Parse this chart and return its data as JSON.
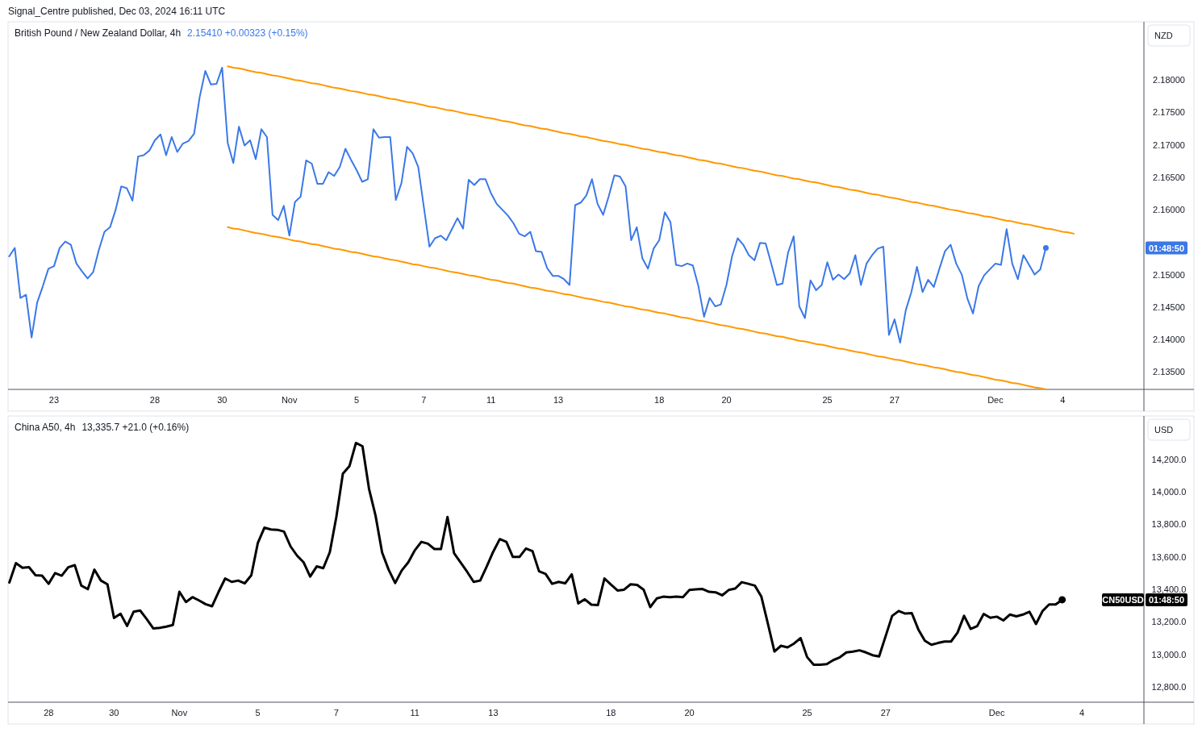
{
  "chart_data": [
    {
      "type": "line",
      "title": "British Pound / New Zealand Dollar, 4h",
      "subtitle": "2.15410  +0.00323 (+0.15%)",
      "ylabel": "NZD",
      "categories": [
        null,
        null,
        null,
        null,
        null,
        null,
        null,
        null,
        "23",
        null,
        null,
        null,
        null,
        null,
        null,
        null,
        null,
        null,
        null,
        null,
        null,
        null,
        null,
        null,
        null,
        null,
        "28",
        null,
        null,
        null,
        null,
        null,
        null,
        null,
        null,
        null,
        null,
        null,
        "30",
        null,
        null,
        null,
        null,
        null,
        null,
        null,
        null,
        null,
        null,
        null,
        "Nov",
        null,
        null,
        null,
        null,
        null,
        null,
        null,
        null,
        null,
        null,
        null,
        "5",
        null,
        null,
        null,
        null,
        null,
        null,
        null,
        null,
        null,
        null,
        null,
        "7",
        null,
        null,
        null,
        null,
        null,
        null,
        null,
        null,
        null,
        null,
        null,
        "11",
        null,
        null,
        null,
        null,
        null,
        null,
        null,
        null,
        null,
        null,
        null,
        "13",
        null,
        null,
        null,
        null,
        null,
        null,
        null,
        null,
        null,
        null,
        null,
        null,
        null,
        null,
        null,
        null,
        null,
        "18",
        null,
        null,
        null,
        null,
        null,
        null,
        null,
        null,
        null,
        null,
        null,
        "20",
        null,
        null,
        null,
        null,
        null,
        null,
        null,
        null,
        null,
        null,
        null,
        null,
        null,
        null,
        null,
        null,
        null,
        "25",
        null,
        null,
        null,
        null,
        null,
        null,
        null,
        null,
        null,
        null,
        null,
        "27",
        null,
        null,
        null,
        null,
        null,
        null,
        null,
        null,
        null,
        null,
        null,
        null,
        null,
        null,
        null,
        null,
        null,
        "Dec",
        null,
        null,
        null,
        null,
        null,
        null,
        null,
        null,
        null,
        null,
        null,
        "4",
        null,
        null,
        null,
        null,
        null,
        null,
        null,
        null,
        null,
        null,
        null,
        null,
        null,
        null
      ],
      "ylim": [
        2.1323,
        2.1886
      ],
      "yticks": [
        {
          "value": 2.135,
          "label": "2.13500"
        },
        {
          "value": 2.14,
          "label": "2.14000"
        },
        {
          "value": 2.145,
          "label": "2.14500"
        },
        {
          "value": 2.15,
          "label": "2.15000"
        },
        {
          "value": 2.16,
          "label": "2.16000"
        },
        {
          "value": 2.165,
          "label": "2.16500"
        },
        {
          "value": 2.17,
          "label": "2.17000"
        },
        {
          "value": 2.175,
          "label": "2.17500"
        },
        {
          "value": 2.18,
          "label": "2.18000"
        }
      ],
      "series": [
        {
          "color": "#3b78e7",
          "values": [
            2.1528,
            2.1541,
            2.1464,
            2.1469,
            2.1403,
            2.1457,
            2.1482,
            2.1509,
            2.1513,
            2.1541,
            2.1551,
            2.1546,
            2.1517,
            2.1505,
            2.1494,
            2.1504,
            2.1538,
            2.1566,
            2.1573,
            2.16,
            2.1636,
            2.1633,
            2.1614,
            2.1682,
            2.1684,
            2.1691,
            2.1707,
            2.1716,
            2.1684,
            2.1712,
            2.1689,
            2.1702,
            2.1706,
            2.1717,
            2.1774,
            2.1814,
            2.1793,
            2.1794,
            2.1819,
            2.1703,
            2.1672,
            2.1728,
            2.1699,
            2.1707,
            2.1678,
            2.1724,
            2.1712,
            2.1592,
            2.1584,
            2.1606,
            2.156,
            2.1612,
            2.162,
            2.1676,
            2.1671,
            2.164,
            2.164,
            2.1658,
            2.1652,
            2.1666,
            2.1694,
            2.1677,
            2.1661,
            2.1643,
            2.1647,
            2.1724,
            2.1711,
            2.1712,
            2.1712,
            2.1615,
            2.1641,
            2.1697,
            2.1687,
            2.1666,
            2.1604,
            2.1543,
            2.1556,
            2.156,
            2.1553,
            2.157,
            2.1587,
            2.1571,
            2.1646,
            2.1638,
            2.1647,
            2.1647,
            2.1625,
            2.1609,
            2.16,
            2.1591,
            2.1579,
            2.1563,
            2.1559,
            2.1566,
            2.1536,
            2.1535,
            2.151,
            2.1498,
            2.1498,
            2.1493,
            2.1484,
            2.1607,
            2.1611,
            2.1622,
            2.1647,
            2.1609,
            2.1592,
            2.1621,
            2.1653,
            2.1651,
            2.1636,
            2.1553,
            2.1573,
            2.1525,
            2.1509,
            2.154,
            2.1553,
            2.1596,
            2.1581,
            2.1515,
            2.1513,
            2.1517,
            2.1514,
            2.1482,
            2.1435,
            2.1464,
            2.1451,
            2.1454,
            2.1484,
            2.1528,
            2.1556,
            2.1546,
            2.153,
            2.1522,
            2.1549,
            2.1548,
            2.1517,
            2.1484,
            2.1486,
            2.1534,
            2.1559,
            2.1451,
            2.1433,
            2.1491,
            2.1476,
            2.1484,
            2.1519,
            2.1492,
            2.15,
            2.1493,
            2.1502,
            2.153,
            2.1484,
            2.1517,
            2.153,
            2.154,
            2.1543,
            2.1407,
            2.1431,
            2.1395,
            2.1445,
            2.1473,
            2.1512,
            2.1473,
            2.1492,
            2.1481,
            2.1509,
            2.1536,
            2.1546,
            2.1517,
            2.15,
            2.1463,
            2.144,
            2.1482,
            2.1499,
            2.1508,
            2.1517,
            2.1515,
            2.157,
            2.1517,
            2.1493,
            2.153,
            2.1515,
            2.15,
            2.1508,
            2.1541,
            null,
            null,
            null,
            null,
            null,
            null,
            null,
            null,
            null,
            null,
            null,
            null,
            null,
            null,
            null,
            null,
            null
          ]
        },
        {
          "color": "#ff9800",
          "values": [
            null,
            null,
            null,
            null,
            null,
            null,
            null,
            null,
            null,
            null,
            null,
            null,
            null,
            null,
            null,
            null,
            null,
            null,
            null,
            null,
            null,
            null,
            null,
            null,
            null,
            null,
            null,
            null,
            null,
            null,
            null,
            null,
            null,
            null,
            null,
            null,
            null,
            null,
            null,
            2.1821,
            2.1819,
            2.1818,
            2.1816,
            2.1814,
            2.1812,
            2.1811,
            2.1809,
            2.1807,
            2.1806,
            2.1804,
            2.1802,
            2.18,
            2.1799,
            2.1797,
            2.1795,
            2.1794,
            2.1792,
            2.179,
            2.1788,
            2.1787,
            2.1785,
            2.1783,
            2.1782,
            2.178,
            2.1778,
            2.1777,
            2.1775,
            2.1773,
            2.1771,
            2.177,
            2.1768,
            2.1766,
            2.1765,
            2.1763,
            2.1761,
            2.1759,
            2.1758,
            2.1756,
            2.1754,
            2.1753,
            2.1751,
            2.1749,
            2.1747,
            2.1746,
            2.1744,
            2.1742,
            2.1741,
            2.1739,
            2.1737,
            2.1736,
            2.1734,
            2.1732,
            2.173,
            2.1729,
            2.1727,
            2.1725,
            2.1724,
            2.1722,
            2.172,
            2.1718,
            2.1717,
            2.1715,
            2.1713,
            2.1712,
            2.171,
            2.1708,
            2.1706,
            2.1705,
            2.1703,
            2.1701,
            2.17,
            2.1698,
            2.1696,
            2.1694,
            2.1693,
            2.1691,
            2.1689,
            2.1688,
            2.1686,
            2.1684,
            2.1683,
            2.1681,
            2.1679,
            2.1677,
            2.1676,
            2.1674,
            2.1672,
            2.1671,
            2.1669,
            2.1667,
            2.1665,
            2.1664,
            2.1662,
            2.166,
            2.1659,
            2.1657,
            2.1655,
            2.1653,
            2.1652,
            2.165,
            2.1648,
            2.1647,
            2.1645,
            2.1643,
            2.1642,
            2.164,
            2.1638,
            2.1636,
            2.1635,
            2.1633,
            2.1631,
            2.163,
            2.1628,
            2.1626,
            2.1624,
            2.1623,
            2.1621,
            2.1619,
            2.1618,
            2.1616,
            2.1614,
            2.1612,
            2.1611,
            2.1609,
            2.1607,
            2.1606,
            2.1604,
            2.1602,
            2.16,
            2.1599,
            2.1597,
            2.1595,
            2.1594,
            2.1592,
            2.159,
            2.1589,
            2.1587,
            2.1585,
            2.1583,
            2.1582,
            2.158,
            2.1578,
            2.1577,
            2.1575,
            2.1573,
            2.1571,
            2.157,
            2.1568,
            2.1566,
            2.1565,
            2.1563,
            null,
            null,
            null,
            null,
            null,
            null,
            null,
            null,
            null,
            null,
            null,
            null
          ]
        },
        {
          "color": "#ff9800",
          "values": [
            null,
            null,
            null,
            null,
            null,
            null,
            null,
            null,
            null,
            null,
            null,
            null,
            null,
            null,
            null,
            null,
            null,
            null,
            null,
            null,
            null,
            null,
            null,
            null,
            null,
            null,
            null,
            null,
            null,
            null,
            null,
            null,
            null,
            null,
            null,
            null,
            null,
            null,
            null,
            2.1573,
            2.1571,
            2.157,
            2.1568,
            2.1566,
            2.1564,
            2.1563,
            2.1561,
            2.1559,
            2.1558,
            2.1556,
            2.1554,
            2.1552,
            2.1551,
            2.1549,
            2.1547,
            2.1546,
            2.1544,
            2.1542,
            2.154,
            2.1539,
            2.1537,
            2.1535,
            2.1534,
            2.1532,
            2.153,
            2.1528,
            2.1527,
            2.1525,
            2.1523,
            2.1522,
            2.152,
            2.1518,
            2.1516,
            2.1515,
            2.1513,
            2.1511,
            2.151,
            2.1508,
            2.1506,
            2.1504,
            2.1503,
            2.1501,
            2.1499,
            2.1498,
            2.1496,
            2.1494,
            2.1492,
            2.1491,
            2.1489,
            2.1487,
            2.1486,
            2.1484,
            2.1482,
            2.148,
            2.1479,
            2.1477,
            2.1475,
            2.1474,
            2.1472,
            2.147,
            2.1469,
            2.1467,
            2.1465,
            2.1463,
            2.1462,
            2.146,
            2.1458,
            2.1457,
            2.1455,
            2.1453,
            2.1451,
            2.145,
            2.1448,
            2.1446,
            2.1445,
            2.1443,
            2.1441,
            2.144,
            2.1438,
            2.1436,
            2.1434,
            2.1433,
            2.1431,
            2.1429,
            2.1428,
            2.1426,
            2.1424,
            2.1422,
            2.1421,
            2.1419,
            2.1417,
            2.1416,
            2.1414,
            2.1412,
            2.141,
            2.1409,
            2.1407,
            2.1405,
            2.1404,
            2.1402,
            2.14,
            2.1398,
            2.1397,
            2.1395,
            2.1393,
            2.1392,
            2.139,
            2.1388,
            2.1386,
            2.1385,
            2.1383,
            2.1381,
            2.138,
            2.1378,
            2.1376,
            2.1374,
            2.1373,
            2.1371,
            2.1369,
            2.1368,
            2.1366,
            2.1364,
            2.1362,
            2.1361,
            2.1359,
            2.1357,
            2.1356,
            2.1354,
            2.1352,
            2.135,
            2.1349,
            2.1347,
            2.1345,
            2.1344,
            2.1342,
            2.134,
            2.1338,
            2.1337,
            2.1335,
            2.1333,
            2.1332,
            2.133,
            2.1328,
            2.1326,
            2.1325,
            2.1323,
            null,
            null,
            null,
            null,
            null,
            null,
            null,
            null,
            null,
            null,
            null,
            null,
            null,
            null,
            null,
            null,
            null
          ]
        },
        {
          "type": "scatter",
          "color": "#3b78e7",
          "values": [
            null,
            null,
            null,
            null,
            null,
            null,
            null,
            null,
            null,
            null,
            null,
            null,
            null,
            null,
            null,
            null,
            null,
            null,
            null,
            null,
            null,
            null,
            null,
            null,
            null,
            null,
            null,
            null,
            null,
            null,
            null,
            null,
            null,
            null,
            null,
            null,
            null,
            null,
            null,
            null,
            null,
            null,
            null,
            null,
            null,
            null,
            null,
            null,
            null,
            null,
            null,
            null,
            null,
            null,
            null,
            null,
            null,
            null,
            null,
            null,
            null,
            null,
            null,
            null,
            null,
            null,
            null,
            null,
            null,
            null,
            null,
            null,
            null,
            null,
            null,
            null,
            null,
            null,
            null,
            null,
            null,
            null,
            null,
            null,
            null,
            null,
            null,
            null,
            null,
            null,
            null,
            null,
            null,
            null,
            null,
            null,
            null,
            null,
            null,
            null,
            null,
            null,
            null,
            null,
            null,
            null,
            null,
            null,
            null,
            null,
            null,
            null,
            null,
            null,
            null,
            null,
            null,
            null,
            null,
            null,
            null,
            null,
            null,
            null,
            null,
            null,
            null,
            null,
            null,
            null,
            null,
            null,
            null,
            null,
            null,
            null,
            null,
            null,
            null,
            null,
            null,
            null,
            null,
            null,
            null,
            null,
            null,
            null,
            null,
            null,
            null,
            null,
            null,
            null,
            null,
            null,
            null,
            null,
            null,
            null,
            null,
            null,
            null,
            null,
            null,
            null,
            null,
            null,
            null,
            null,
            null,
            null,
            null,
            null,
            null,
            null,
            null,
            null,
            null,
            null,
            null,
            null,
            null,
            null,
            null,
            2.1541,
            null,
            null,
            null,
            null,
            null,
            null,
            null,
            null,
            null,
            null,
            null,
            null,
            null,
            null,
            null,
            null,
            null
          ]
        }
      ],
      "annotations": [
        "Signal_Centre published, Dec 03, 2024 16:11 UTC",
        "01:48:50"
      ]
    },
    {
      "type": "line",
      "title": "China A50, 4h",
      "subtitle": "13,335.7  +21.0 (+0.16%)",
      "ylabel": "USD",
      "categories": [
        null,
        null,
        null,
        null,
        null,
        null,
        "28",
        null,
        null,
        null,
        null,
        null,
        null,
        null,
        null,
        null,
        "30",
        null,
        null,
        null,
        null,
        null,
        null,
        null,
        null,
        null,
        "Nov",
        null,
        null,
        null,
        null,
        null,
        null,
        null,
        null,
        null,
        null,
        null,
        "5",
        null,
        null,
        null,
        null,
        null,
        null,
        null,
        null,
        null,
        null,
        null,
        "7",
        null,
        null,
        null,
        null,
        null,
        null,
        null,
        null,
        null,
        null,
        null,
        "11",
        null,
        null,
        null,
        null,
        null,
        null,
        null,
        null,
        null,
        null,
        null,
        "13",
        null,
        null,
        null,
        null,
        null,
        null,
        null,
        null,
        null,
        null,
        null,
        null,
        null,
        null,
        null,
        null,
        null,
        "18",
        null,
        null,
        null,
        null,
        null,
        null,
        null,
        null,
        null,
        null,
        null,
        "20",
        null,
        null,
        null,
        null,
        null,
        null,
        null,
        null,
        null,
        null,
        null,
        null,
        null,
        null,
        null,
        null,
        null,
        "25",
        null,
        null,
        null,
        null,
        null,
        null,
        null,
        null,
        null,
        null,
        null,
        "27",
        null,
        null,
        null,
        null,
        null,
        null,
        null,
        null,
        null,
        null,
        null,
        null,
        null,
        null,
        null,
        null,
        "Dec",
        null,
        null,
        null,
        null,
        null,
        null,
        null,
        null,
        null,
        null,
        null,
        null,
        "4",
        null,
        null,
        null,
        null,
        null,
        null,
        null,
        null,
        null
      ],
      "ylim": [
        12706,
        14451
      ],
      "yticks": [
        {
          "value": 12800,
          "label": "12,800.0"
        },
        {
          "value": 13000,
          "label": "13,000.0"
        },
        {
          "value": 13200,
          "label": "13,200.0"
        },
        {
          "value": 13400,
          "label": "13,400.0"
        },
        {
          "value": 13600,
          "label": "13,600.0"
        },
        {
          "value": 13800,
          "label": "13,800.0"
        },
        {
          "value": 14000,
          "label": "14,000.0"
        },
        {
          "value": 14200,
          "label": "14,200.0"
        }
      ],
      "series": [
        {
          "color": "#000000",
          "values": [
            13442,
            13561,
            13533,
            13536,
            13487,
            13484,
            13434,
            13500,
            13484,
            13536,
            13549,
            13423,
            13401,
            13521,
            13454,
            13431,
            13224,
            13250,
            13175,
            13262,
            13270,
            13217,
            13160,
            13163,
            13171,
            13181,
            13385,
            13322,
            13352,
            13332,
            13309,
            13296,
            13385,
            13467,
            13446,
            13454,
            13437,
            13487,
            13686,
            13779,
            13768,
            13766,
            13755,
            13664,
            13607,
            13566,
            13479,
            13541,
            13530,
            13628,
            13845,
            14111,
            14157,
            14300,
            14280,
            14018,
            13853,
            13627,
            13521,
            13439,
            13516,
            13566,
            13640,
            13692,
            13681,
            13648,
            13648,
            13845,
            13623,
            13566,
            13508,
            13446,
            13454,
            13541,
            13632,
            13709,
            13692,
            13599,
            13599,
            13651,
            13635,
            13511,
            13495,
            13434,
            13446,
            13437,
            13492,
            13314,
            13339,
            13306,
            13303,
            13467,
            13429,
            13393,
            13398,
            13431,
            13427,
            13398,
            13291,
            13344,
            13355,
            13352,
            13355,
            13352,
            13396,
            13400,
            13402,
            13385,
            13382,
            13363,
            13396,
            13405,
            13444,
            13434,
            13423,
            13355,
            13188,
            13018,
            13053,
            13043,
            13067,
            13100,
            12983,
            12937,
            12937,
            12940,
            12965,
            12982,
            13012,
            13017,
            13025,
            13012,
            12995,
            12987,
            13112,
            13237,
            13267,
            13251,
            13254,
            13154,
            13084,
            13059,
            13070,
            13079,
            13079,
            13134,
            13237,
            13157,
            13174,
            13249,
            13225,
            13232,
            13209,
            13245,
            13234,
            13245,
            13262,
            13187,
            13267,
            13307,
            13307,
            13336,
            null,
            null,
            null,
            null,
            null,
            null,
            null,
            null,
            null,
            null,
            null,
            null
          ]
        },
        {
          "type": "scatter",
          "color": "#000000",
          "values": [
            null,
            null,
            null,
            null,
            null,
            null,
            null,
            null,
            null,
            null,
            null,
            null,
            null,
            null,
            null,
            null,
            null,
            null,
            null,
            null,
            null,
            null,
            null,
            null,
            null,
            null,
            null,
            null,
            null,
            null,
            null,
            null,
            null,
            null,
            null,
            null,
            null,
            null,
            null,
            null,
            null,
            null,
            null,
            null,
            null,
            null,
            null,
            null,
            null,
            null,
            null,
            null,
            null,
            null,
            null,
            null,
            null,
            null,
            null,
            null,
            null,
            null,
            null,
            null,
            null,
            null,
            null,
            null,
            null,
            null,
            null,
            null,
            null,
            null,
            null,
            null,
            null,
            null,
            null,
            null,
            null,
            null,
            null,
            null,
            null,
            null,
            null,
            null,
            null,
            null,
            null,
            null,
            null,
            null,
            null,
            null,
            null,
            null,
            null,
            null,
            null,
            null,
            null,
            null,
            null,
            null,
            null,
            null,
            null,
            null,
            null,
            null,
            null,
            null,
            null,
            null,
            null,
            null,
            null,
            null,
            null,
            null,
            null,
            null,
            null,
            null,
            null,
            null,
            null,
            null,
            null,
            null,
            null,
            null,
            null,
            null,
            null,
            null,
            null,
            null,
            null,
            null,
            null,
            null,
            null,
            null,
            null,
            null,
            null,
            null,
            null,
            null,
            null,
            null,
            null,
            null,
            null,
            null,
            null,
            null,
            null,
            13336,
            null,
            null,
            null,
            null,
            null,
            null,
            null,
            null,
            null,
            null,
            null,
            null
          ]
        }
      ],
      "annotations": [
        "CN50USD",
        "01:48:50"
      ]
    }
  ]
}
